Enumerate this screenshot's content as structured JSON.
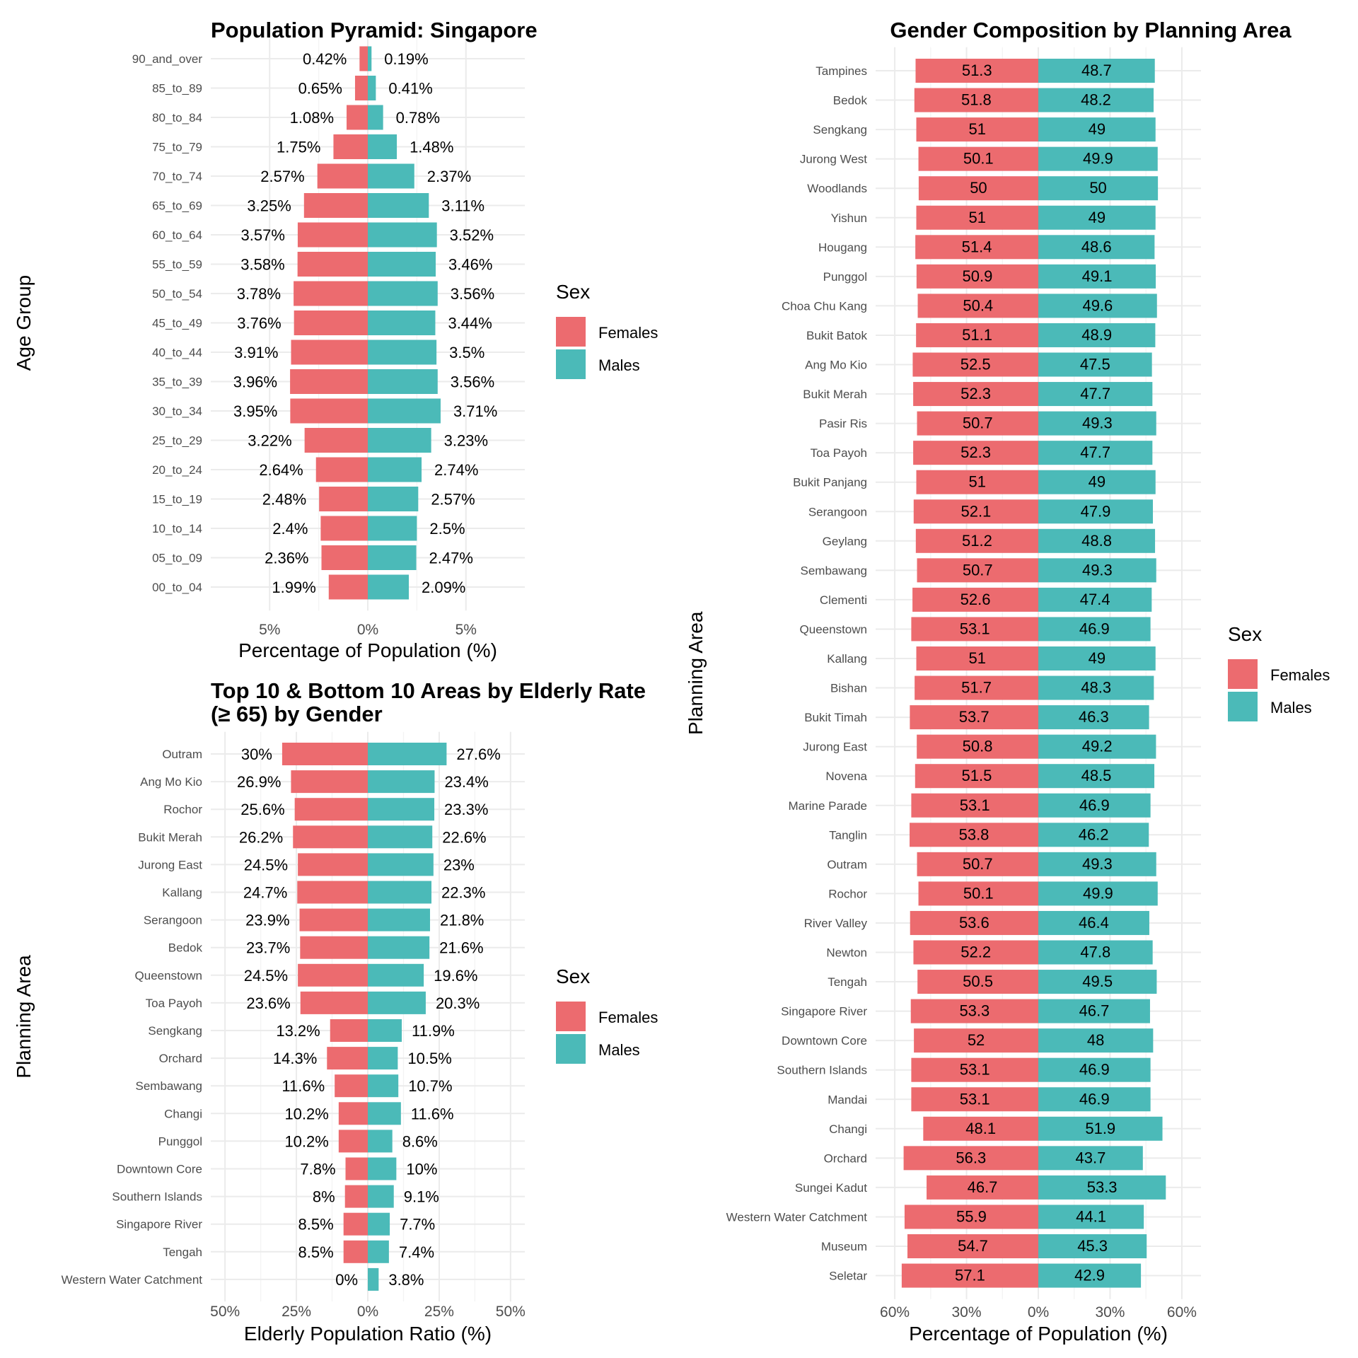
{
  "colors": {
    "females": "#ec6b6f",
    "males": "#4bbab8"
  },
  "legend": {
    "title": "Sex",
    "females": "Females",
    "males": "Males"
  },
  "chart_data": [
    {
      "id": "pyramid",
      "type": "bar",
      "orientation": "horizontal-diverging",
      "title": "Population Pyramid: Singapore",
      "xlabel": "Percentage of Population (%)",
      "ylabel": "Age Group",
      "xlim": [
        -8,
        8
      ],
      "xticks": [
        {
          "v": -5,
          "label": "5%"
        },
        {
          "v": 0,
          "label": "0%"
        },
        {
          "v": 5,
          "label": "5%"
        }
      ],
      "categories": [
        "90_and_over",
        "85_to_89",
        "80_to_84",
        "75_to_79",
        "70_to_74",
        "65_to_69",
        "60_to_64",
        "55_to_59",
        "50_to_54",
        "45_to_49",
        "40_to_44",
        "35_to_39",
        "30_to_34",
        "25_to_29",
        "20_to_24",
        "15_to_19",
        "10_to_14",
        "05_to_09",
        "00_to_04"
      ],
      "series": [
        {
          "name": "Females",
          "values": [
            0.42,
            0.65,
            1.08,
            1.75,
            2.57,
            3.25,
            3.57,
            3.58,
            3.78,
            3.76,
            3.91,
            3.96,
            3.95,
            3.22,
            2.64,
            2.48,
            2.4,
            2.36,
            1.99
          ],
          "labels": [
            "0.42%",
            "0.65%",
            "1.08%",
            "1.75%",
            "2.57%",
            "3.25%",
            "3.57%",
            "3.58%",
            "3.78%",
            "3.76%",
            "3.91%",
            "3.96%",
            "3.95%",
            "3.22%",
            "2.64%",
            "2.48%",
            "2.4%",
            "2.36%",
            "1.99%"
          ]
        },
        {
          "name": "Males",
          "values": [
            0.19,
            0.41,
            0.78,
            1.48,
            2.37,
            3.11,
            3.52,
            3.46,
            3.56,
            3.44,
            3.5,
            3.56,
            3.71,
            3.23,
            2.74,
            2.57,
            2.5,
            2.47,
            2.09
          ],
          "labels": [
            "0.19%",
            "0.41%",
            "0.78%",
            "1.48%",
            "2.37%",
            "3.11%",
            "3.52%",
            "3.46%",
            "3.56%",
            "3.44%",
            "3.5%",
            "3.56%",
            "3.71%",
            "3.23%",
            "2.74%",
            "2.57%",
            "2.5%",
            "2.47%",
            "2.09%"
          ]
        }
      ],
      "legend": "right"
    },
    {
      "id": "elderly",
      "type": "bar",
      "orientation": "horizontal-diverging",
      "title": [
        "Top 10 & Bottom 10 Areas by Elderly Rate",
        "(≥ 65) by Gender"
      ],
      "xlabel": "Elderly Population Ratio (%)",
      "ylabel": "Planning Area",
      "xlim": [
        -55,
        55
      ],
      "xticks": [
        {
          "v": -50,
          "label": "50%"
        },
        {
          "v": -25,
          "label": "25%"
        },
        {
          "v": 0,
          "label": "0%"
        },
        {
          "v": 25,
          "label": "25%"
        },
        {
          "v": 50,
          "label": "50%"
        }
      ],
      "categories": [
        "Outram",
        "Ang Mo Kio",
        "Rochor",
        "Bukit Merah",
        "Jurong East",
        "Kallang",
        "Serangoon",
        "Bedok",
        "Queenstown",
        "Toa Payoh",
        "Sengkang",
        "Orchard",
        "Sembawang",
        "Changi",
        "Punggol",
        "Downtown Core",
        "Southern Islands",
        "Singapore River",
        "Tengah",
        "Western Water Catchment"
      ],
      "series": [
        {
          "name": "Females",
          "values": [
            30,
            26.9,
            25.6,
            26.2,
            24.5,
            24.7,
            23.9,
            23.7,
            24.5,
            23.6,
            13.2,
            14.3,
            11.6,
            10.2,
            10.2,
            7.8,
            8,
            8.5,
            8.5,
            0
          ],
          "labels": [
            "30%",
            "26.9%",
            "25.6%",
            "26.2%",
            "24.5%",
            "24.7%",
            "23.9%",
            "23.7%",
            "24.5%",
            "23.6%",
            "13.2%",
            "14.3%",
            "11.6%",
            "10.2%",
            "10.2%",
            "7.8%",
            "8%",
            "8.5%",
            "8.5%",
            "0%"
          ]
        },
        {
          "name": "Males",
          "values": [
            27.6,
            23.4,
            23.3,
            22.6,
            23,
            22.3,
            21.8,
            21.6,
            19.6,
            20.3,
            11.9,
            10.5,
            10.7,
            11.6,
            8.6,
            10,
            9.1,
            7.7,
            7.4,
            3.8
          ],
          "labels": [
            "27.6%",
            "23.4%",
            "23.3%",
            "22.6%",
            "23%",
            "22.3%",
            "21.8%",
            "21.6%",
            "19.6%",
            "20.3%",
            "11.9%",
            "10.5%",
            "10.7%",
            "11.6%",
            "8.6%",
            "10%",
            "9.1%",
            "7.7%",
            "7.4%",
            "3.8%"
          ]
        }
      ],
      "legend": "right"
    },
    {
      "id": "gender",
      "type": "bar",
      "orientation": "horizontal-diverging",
      "title": "Gender Composition by Planning Area",
      "xlabel": "Percentage of Population (%)",
      "ylabel": "Planning Area",
      "xlim": [
        -68,
        68
      ],
      "xticks": [
        {
          "v": -60,
          "label": "60%"
        },
        {
          "v": -30,
          "label": "30%"
        },
        {
          "v": 0,
          "label": "0%"
        },
        {
          "v": 30,
          "label": "30%"
        },
        {
          "v": 60,
          "label": "60%"
        }
      ],
      "categories": [
        "Tampines",
        "Bedok",
        "Sengkang",
        "Jurong West",
        "Woodlands",
        "Yishun",
        "Hougang",
        "Punggol",
        "Choa Chu Kang",
        "Bukit Batok",
        "Ang Mo Kio",
        "Bukit Merah",
        "Pasir Ris",
        "Toa Payoh",
        "Bukit Panjang",
        "Serangoon",
        "Geylang",
        "Sembawang",
        "Clementi",
        "Queenstown",
        "Kallang",
        "Bishan",
        "Bukit Timah",
        "Jurong East",
        "Novena",
        "Marine Parade",
        "Tanglin",
        "Outram",
        "Rochor",
        "River Valley",
        "Newton",
        "Tengah",
        "Singapore River",
        "Downtown Core",
        "Southern Islands",
        "Mandai",
        "Changi",
        "Orchard",
        "Sungei Kadut",
        "Western Water Catchment",
        "Museum",
        "Seletar"
      ],
      "series": [
        {
          "name": "Females",
          "values": [
            51.3,
            51.8,
            51,
            50.1,
            50,
            51,
            51.4,
            50.9,
            50.4,
            51.1,
            52.5,
            52.3,
            50.7,
            52.3,
            51,
            52.1,
            51.2,
            50.7,
            52.6,
            53.1,
            51,
            51.7,
            53.7,
            50.8,
            51.5,
            53.1,
            53.8,
            50.7,
            50.1,
            53.6,
            52.2,
            50.5,
            53.3,
            52,
            53.1,
            53.1,
            48.1,
            56.3,
            46.7,
            55.9,
            54.7,
            57.1
          ],
          "labels": [
            "51.3",
            "51.8",
            "51",
            "50.1",
            "50",
            "51",
            "51.4",
            "50.9",
            "50.4",
            "51.1",
            "52.5",
            "52.3",
            "50.7",
            "52.3",
            "51",
            "52.1",
            "51.2",
            "50.7",
            "52.6",
            "53.1",
            "51",
            "51.7",
            "53.7",
            "50.8",
            "51.5",
            "53.1",
            "53.8",
            "50.7",
            "50.1",
            "53.6",
            "52.2",
            "50.5",
            "53.3",
            "52",
            "53.1",
            "53.1",
            "48.1",
            "56.3",
            "46.7",
            "55.9",
            "54.7",
            "57.1"
          ]
        },
        {
          "name": "Males",
          "values": [
            48.7,
            48.2,
            49,
            49.9,
            50,
            49,
            48.6,
            49.1,
            49.6,
            48.9,
            47.5,
            47.7,
            49.3,
            47.7,
            49,
            47.9,
            48.8,
            49.3,
            47.4,
            46.9,
            49,
            48.3,
            46.3,
            49.2,
            48.5,
            46.9,
            46.2,
            49.3,
            49.9,
            46.4,
            47.8,
            49.5,
            46.7,
            48,
            46.9,
            46.9,
            51.9,
            43.7,
            53.3,
            44.1,
            45.3,
            42.9
          ],
          "labels": [
            "48.7",
            "48.2",
            "49",
            "49.9",
            "50",
            "49",
            "48.6",
            "49.1",
            "49.6",
            "48.9",
            "47.5",
            "47.7",
            "49.3",
            "47.7",
            "49",
            "47.9",
            "48.8",
            "49.3",
            "47.4",
            "46.9",
            "49",
            "48.3",
            "46.3",
            "49.2",
            "48.5",
            "46.9",
            "46.2",
            "49.3",
            "49.9",
            "46.4",
            "47.8",
            "49.5",
            "46.7",
            "48",
            "46.9",
            "46.9",
            "51.9",
            "43.7",
            "53.3",
            "44.1",
            "45.3",
            "42.9"
          ]
        }
      ],
      "legend": "right"
    }
  ]
}
